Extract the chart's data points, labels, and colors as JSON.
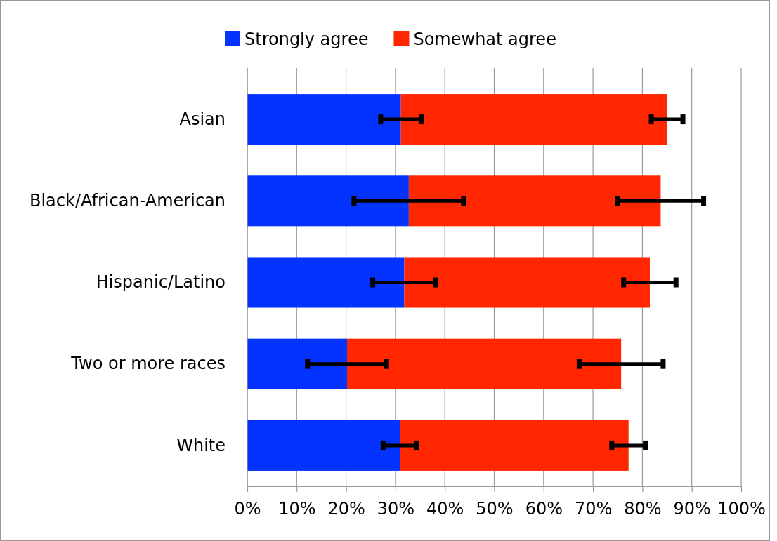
{
  "chart_data": {
    "type": "bar",
    "orientation": "horizontal",
    "stacked": true,
    "categories": [
      "Asian",
      "Black/African-American",
      "Hispanic/Latino",
      "Two or more races",
      "White"
    ],
    "series": [
      {
        "name": "Strongly agree",
        "color": "#0433ff",
        "values": [
          31.1,
          32.7,
          31.8,
          20.2,
          30.9
        ],
        "errors": [
          4.1,
          11.1,
          6.4,
          8,
          3.4
        ]
      },
      {
        "name": "Somewhat agree",
        "color": "#ff2600",
        "values": [
          53.9,
          51,
          49.7,
          55.5,
          46.3
        ],
        "errors": [
          3.2,
          8.7,
          5.3,
          8.5,
          3.4
        ]
      }
    ],
    "xlim": [
      0,
      100
    ],
    "xticks": [
      {
        "value": 0,
        "label": "0%"
      },
      {
        "value": 10,
        "label": "10%"
      },
      {
        "value": 20,
        "label": "20%"
      },
      {
        "value": 30,
        "label": "30%"
      },
      {
        "value": 40,
        "label": "40%"
      },
      {
        "value": 50,
        "label": "50%"
      },
      {
        "value": 60,
        "label": "60%"
      },
      {
        "value": 70,
        "label": "70%"
      },
      {
        "value": 80,
        "label": "80%"
      },
      {
        "value": 90,
        "label": "90%"
      },
      {
        "value": 100,
        "label": "100%"
      }
    ],
    "grid": "x",
    "legend": "top"
  }
}
